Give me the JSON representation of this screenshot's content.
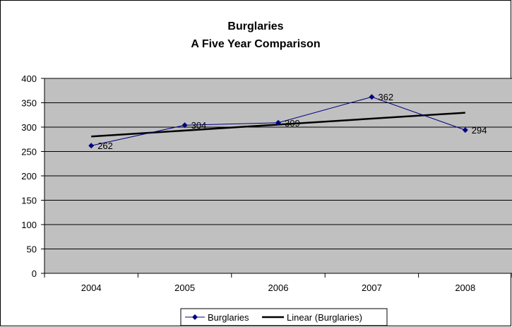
{
  "chart_data": {
    "type": "line",
    "title": "Burglaries",
    "subtitle": "A Five Year Comparison",
    "categories": [
      "2004",
      "2005",
      "2006",
      "2007",
      "2008"
    ],
    "series": [
      {
        "name": "Burglaries",
        "values": [
          262,
          304,
          309,
          362,
          294
        ],
        "color": "#000080",
        "marker": "diamond",
        "data_labels": [
          "262",
          "304",
          "309",
          "362",
          "294"
        ]
      },
      {
        "name": "Linear (Burglaries)",
        "type": "linear-trendline",
        "values": [
          280.8,
          293.0,
          305.2,
          317.4,
          329.6
        ],
        "color": "#000000"
      }
    ],
    "ylim": [
      0,
      400
    ],
    "y_ticks": [
      "0",
      "50",
      "100",
      "150",
      "200",
      "250",
      "300",
      "350",
      "400"
    ],
    "grid": true,
    "plot_background": "#c0c0c0",
    "legend_position": "bottom"
  }
}
